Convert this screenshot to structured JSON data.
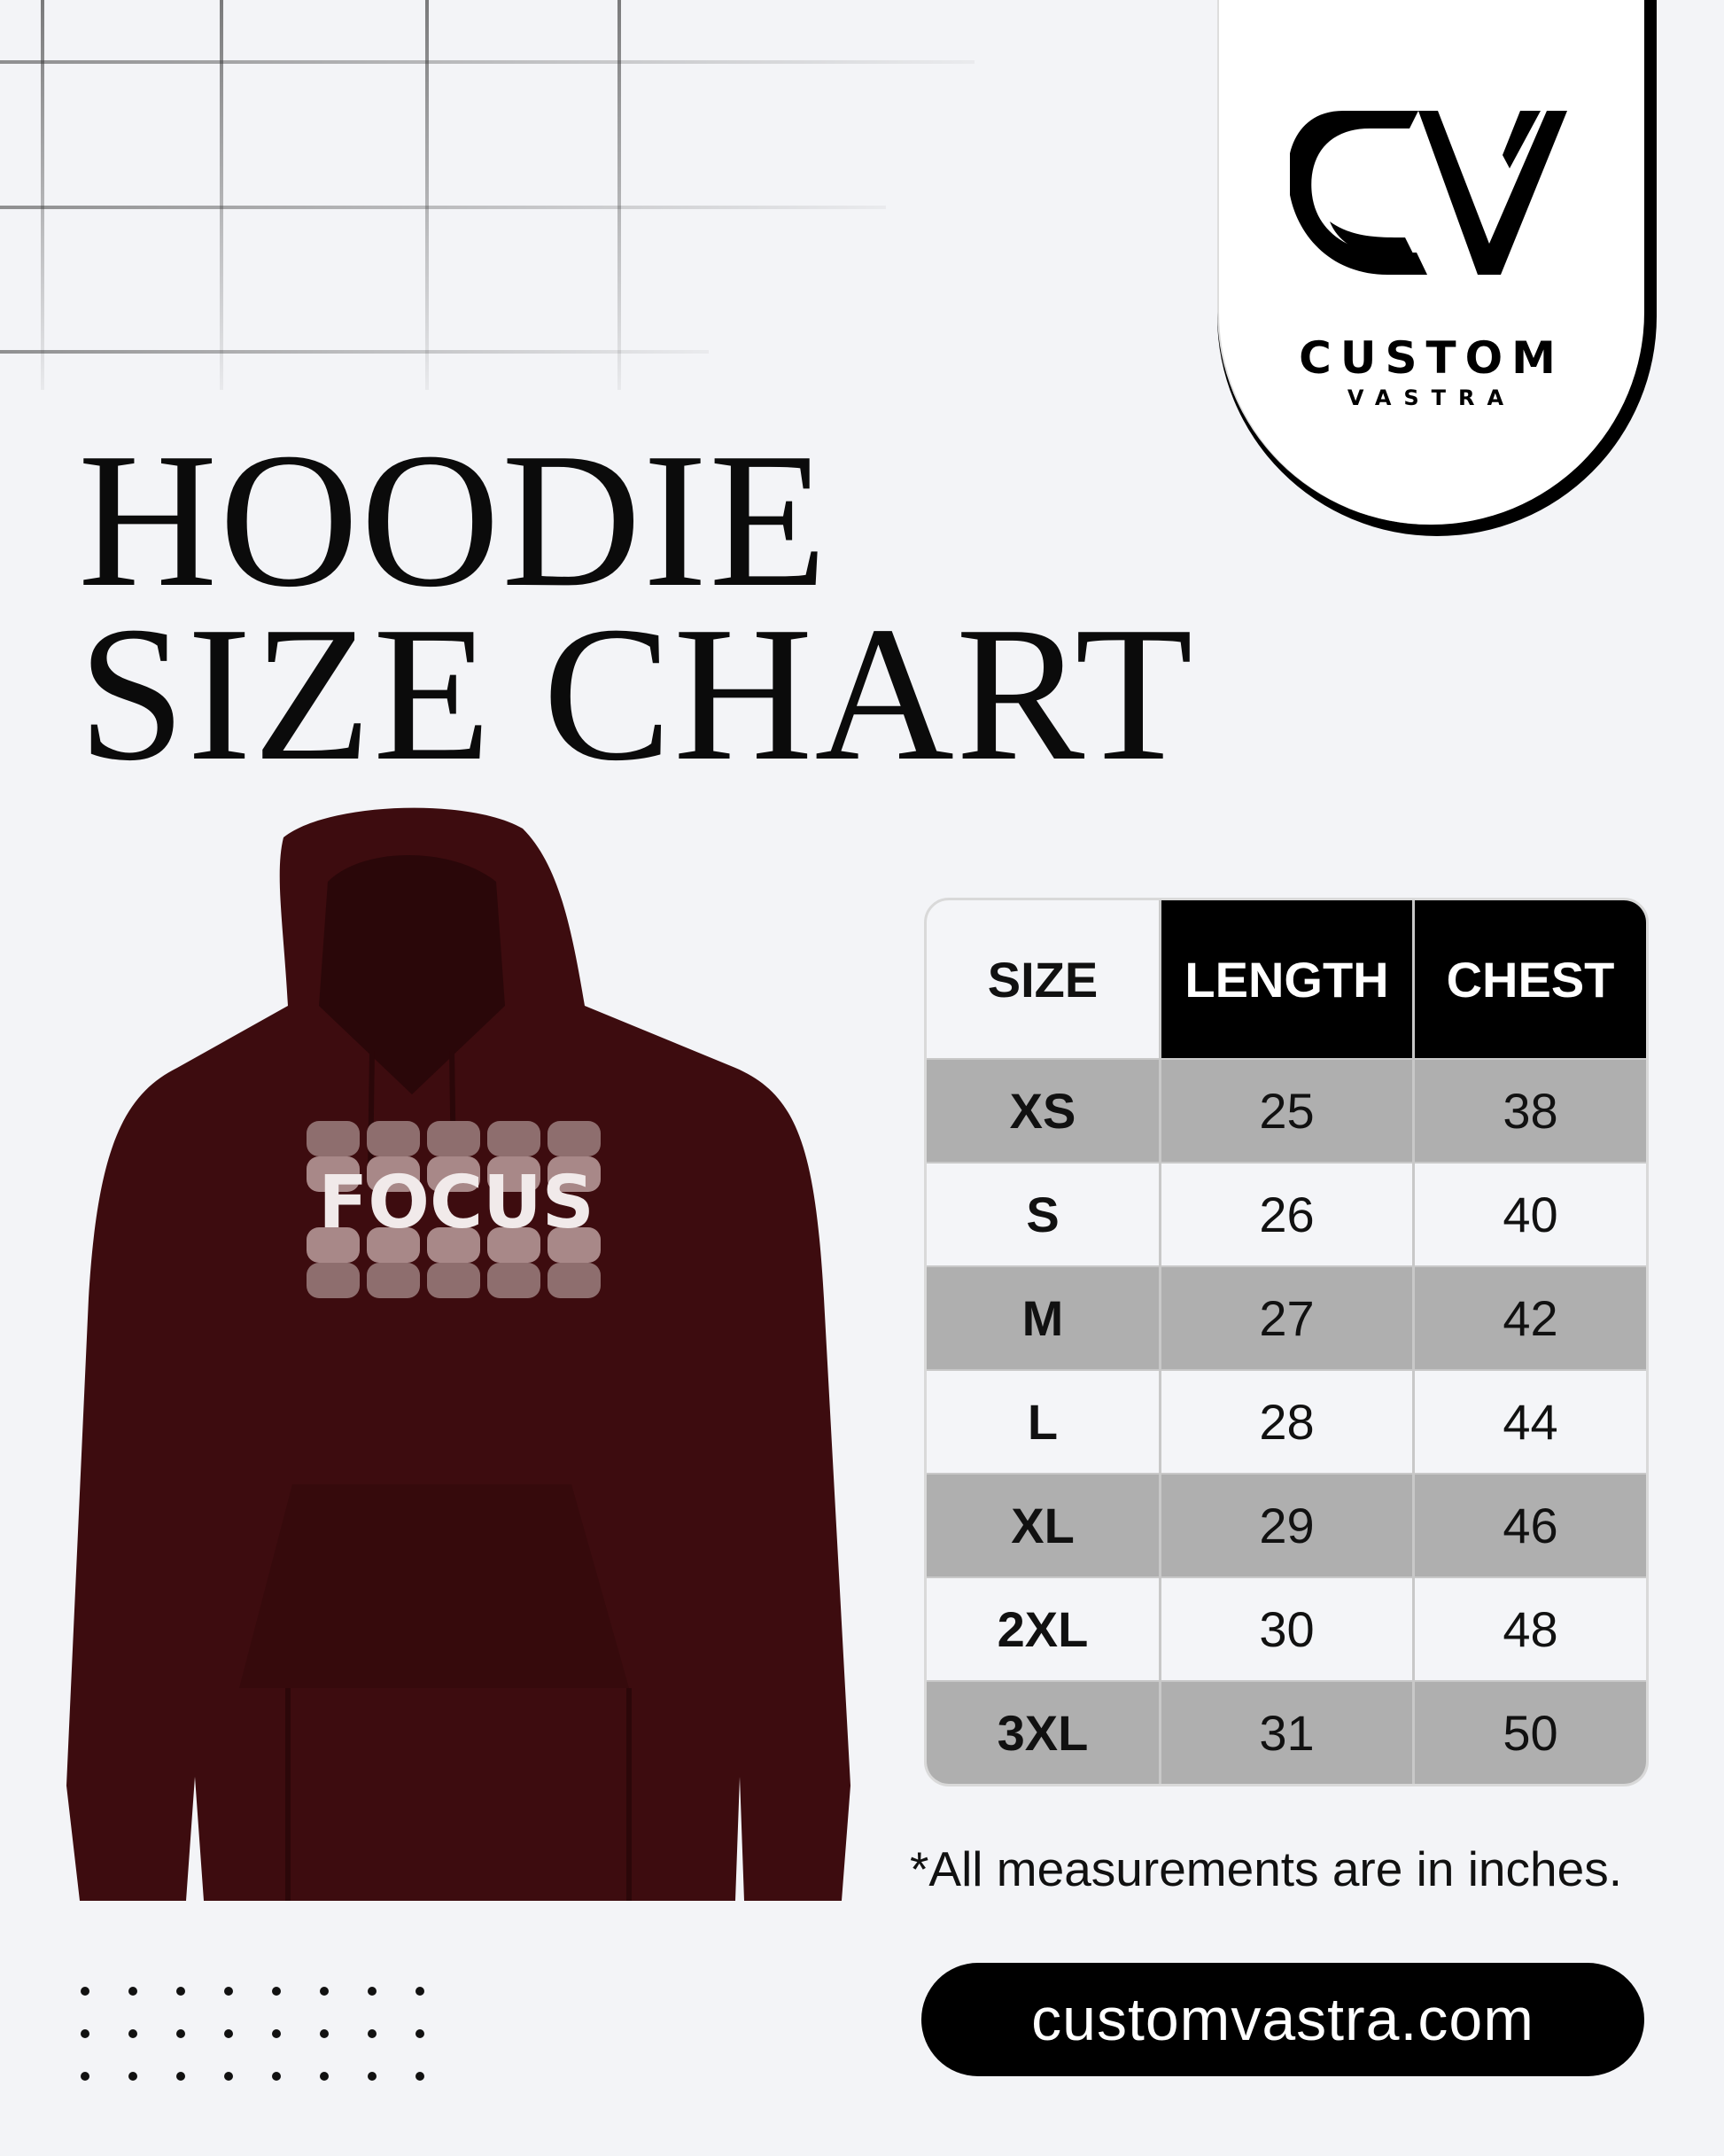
{
  "brand": {
    "logo_mark": "CV",
    "name_line1": "CUSTOM",
    "name_line2": "VASTRA"
  },
  "title": {
    "line1": "HOODIE",
    "line2": "SIZE CHART"
  },
  "product": {
    "print_text": "FOCUS",
    "color": "#3d0c0f"
  },
  "table": {
    "headers": [
      "SIZE",
      "LENGTH",
      "CHEST"
    ],
    "rows": [
      {
        "size": "XS",
        "length": "25",
        "chest": "38"
      },
      {
        "size": "S",
        "length": "26",
        "chest": "40"
      },
      {
        "size": "M",
        "length": "27",
        "chest": "42"
      },
      {
        "size": "L",
        "length": "28",
        "chest": "44"
      },
      {
        "size": "XL",
        "length": "29",
        "chest": "46"
      },
      {
        "size": "2XL",
        "length": "30",
        "chest": "48"
      },
      {
        "size": "3XL",
        "length": "31",
        "chest": "50"
      }
    ]
  },
  "note": "*All measurements are in inches.",
  "website": "customvastra.com",
  "colors": {
    "background": "#f3f4f7",
    "header": "#000000",
    "stripe": "#afafaf"
  }
}
